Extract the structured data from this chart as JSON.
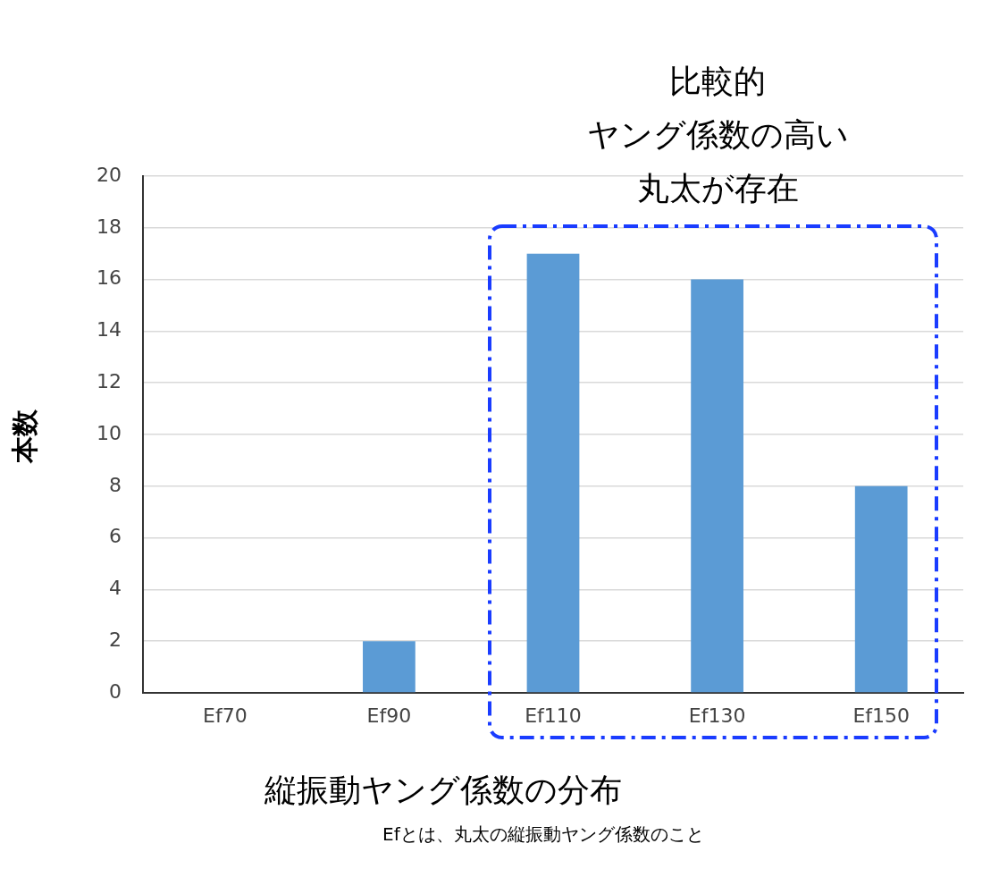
{
  "chart_data": {
    "type": "bar",
    "xlabel": "縦振動ヤング係数の分布",
    "ylabel": "本数",
    "categories": [
      "Ef70",
      "Ef90",
      "Ef110",
      "Ef130",
      "Ef150"
    ],
    "values": [
      0,
      2,
      17,
      16,
      8
    ],
    "color": "#5b9bd5",
    "ylim": [
      0,
      20
    ],
    "yticks": [
      0,
      2,
      4,
      6,
      8,
      10,
      12,
      14,
      16,
      18,
      20
    ],
    "grid": "y",
    "annotations": [
      "比較的",
      "ヤング係数の高い",
      "丸太が存在",
      "Efとは、丸太の縦振動ヤング係数のこと"
    ]
  }
}
